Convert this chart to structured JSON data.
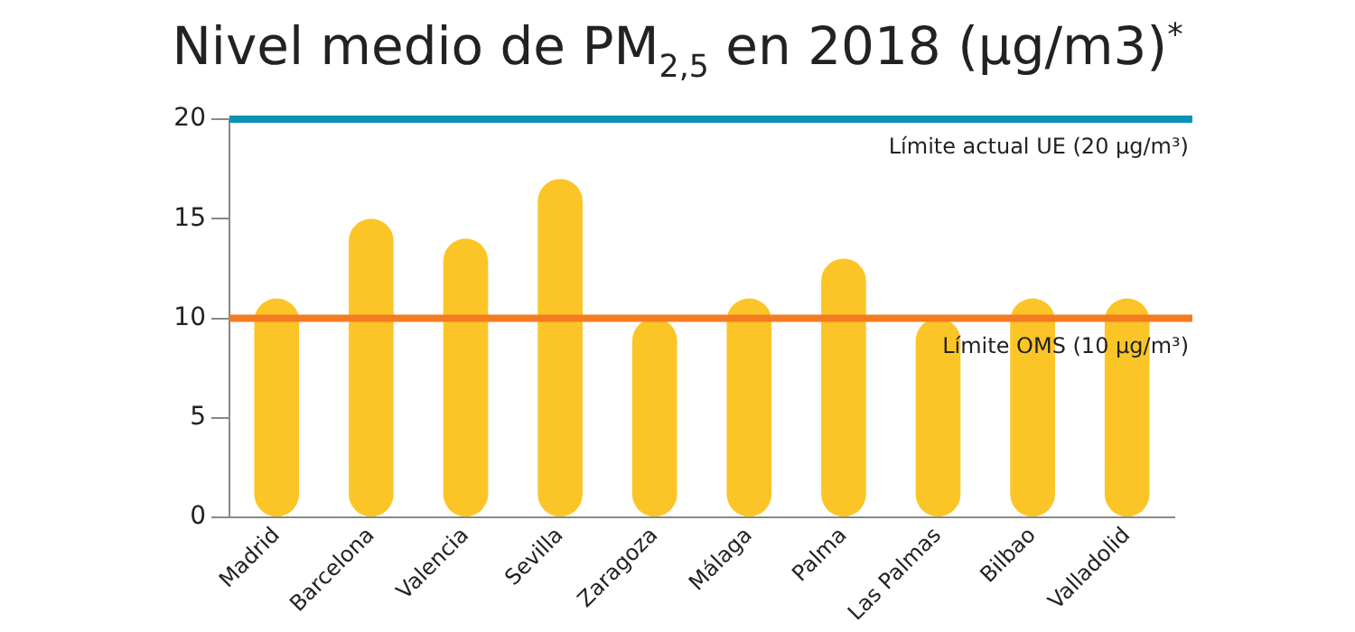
{
  "chart_data": {
    "type": "bar",
    "title": "Nivel medio de PM$_{2,5}$ en 2018 (µg/m3)$^{*}$",
    "categories": [
      "Madrid",
      "Barcelona",
      "Valencia",
      "Sevilla",
      "Zaragoza",
      "Málaga",
      "Palma",
      "Las Palmas",
      "Bilbao",
      "Valladolid"
    ],
    "values": [
      11,
      15,
      14,
      17,
      10,
      11,
      13,
      10,
      11,
      11
    ],
    "color": "#fcc527",
    "ylim": [
      0,
      20
    ],
    "yticks": [
      0,
      5,
      10,
      15,
      20
    ],
    "grid": false,
    "legend": false,
    "ref_lines": [
      {
        "axis": "y",
        "value": 20,
        "label": "Límite actual UE (20 µg/m³)",
        "color": "#0a93b5"
      },
      {
        "axis": "y",
        "value": 10,
        "label": "Límite OMS (10 µg/m³)",
        "color": "#f47b20"
      }
    ]
  }
}
